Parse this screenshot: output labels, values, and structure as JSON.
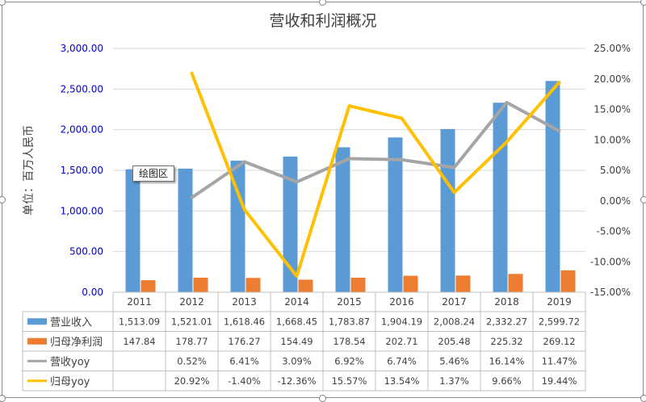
{
  "tooltip": "绘图区",
  "chart_data": {
    "type": "bar",
    "title": "营收和利润概况",
    "ylabel": "单位：百万人民币",
    "ylim": [
      0,
      3000
    ],
    "y2lim": [
      -0.15,
      0.25
    ],
    "yticks": [
      "0.00",
      "500.00",
      "1,000.00",
      "1,500.00",
      "2,000.00",
      "2,500.00",
      "3,000.00"
    ],
    "y2ticks": [
      "-15.00%",
      "-10.00%",
      "-5.00%",
      "0.00%",
      "5.00%",
      "10.00%",
      "15.00%",
      "20.00%",
      "25.00%"
    ],
    "categories": [
      "2011",
      "2012",
      "2013",
      "2014",
      "2015",
      "2016",
      "2017",
      "2018",
      "2019"
    ],
    "series": [
      {
        "name": "营业收入",
        "kind": "bar",
        "axis": "left",
        "color": "#5b9bd5",
        "values": [
          1513.09,
          1521.01,
          1618.46,
          1668.45,
          1783.87,
          1904.19,
          2008.24,
          2332.27,
          2599.72
        ],
        "labels": [
          "1,513.09",
          "1,521.01",
          "1,618.46",
          "1,668.45",
          "1,783.87",
          "1,904.19",
          "2,008.24",
          "2,332.27",
          "2,599.72"
        ]
      },
      {
        "name": "归母净利润",
        "kind": "bar",
        "axis": "left",
        "color": "#ed7d31",
        "values": [
          147.84,
          178.77,
          176.27,
          154.49,
          178.54,
          202.71,
          205.48,
          225.32,
          269.12
        ],
        "labels": [
          "147.84",
          "178.77",
          "176.27",
          "154.49",
          "178.54",
          "202.71",
          "205.48",
          "225.32",
          "269.12"
        ]
      },
      {
        "name": "营收yoy",
        "kind": "line",
        "axis": "right",
        "color": "#a5a5a5",
        "values": [
          null,
          0.0052,
          0.0641,
          0.0309,
          0.0692,
          0.0674,
          0.0546,
          0.1614,
          0.1147
        ],
        "labels": [
          "",
          "0.52%",
          "6.41%",
          "3.09%",
          "6.92%",
          "6.74%",
          "5.46%",
          "16.14%",
          "11.47%"
        ]
      },
      {
        "name": "归母yoy",
        "kind": "line",
        "axis": "right",
        "color": "#ffc000",
        "values": [
          null,
          0.2092,
          -0.014,
          -0.1236,
          0.1557,
          0.1354,
          0.0137,
          0.0966,
          0.1944
        ],
        "labels": [
          "",
          "20.92%",
          "-1.40%",
          "-12.36%",
          "15.57%",
          "13.54%",
          "1.37%",
          "9.66%",
          "19.44%"
        ]
      }
    ],
    "grid": true,
    "legend": "data-table"
  }
}
